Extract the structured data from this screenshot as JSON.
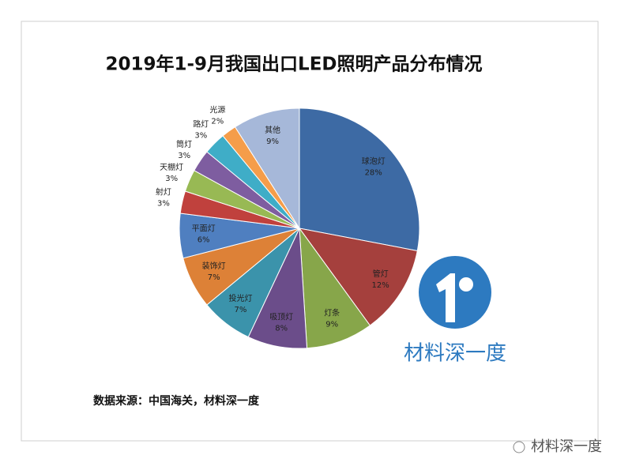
{
  "chart_data": {
    "type": "pie",
    "title": "2019年1-9月我国出口LED照明产品分布情况",
    "categories": [
      "球泡灯",
      "管灯",
      "灯条",
      "吸顶灯",
      "投光灯",
      "装饰灯",
      "平面灯",
      "射灯",
      "天棚灯",
      "筒灯",
      "路灯",
      "光源",
      "其他"
    ],
    "values": [
      28,
      12,
      9,
      8,
      7,
      7,
      6,
      3,
      3,
      3,
      3,
      2,
      9
    ],
    "value_labels": [
      "28%",
      "12%",
      "9%",
      "8%",
      "7%",
      "7%",
      "6%",
      "3%",
      "3%",
      "3%",
      "3%",
      "2%",
      "9%"
    ],
    "colors": [
      "#3d6aa4",
      "#a5403d",
      "#87a64a",
      "#6b4d8a",
      "#3b93ab",
      "#dd8137",
      "#4f7fc0",
      "#c0413d",
      "#98b954",
      "#7e5da0",
      "#3fadc7",
      "#f59d4a",
      "#a6b8d9"
    ],
    "source": "数据来源：中国海关，材料深一度"
  },
  "logo": {
    "text": "材料深一度"
  },
  "watermark": {
    "text": "材料深一度"
  }
}
